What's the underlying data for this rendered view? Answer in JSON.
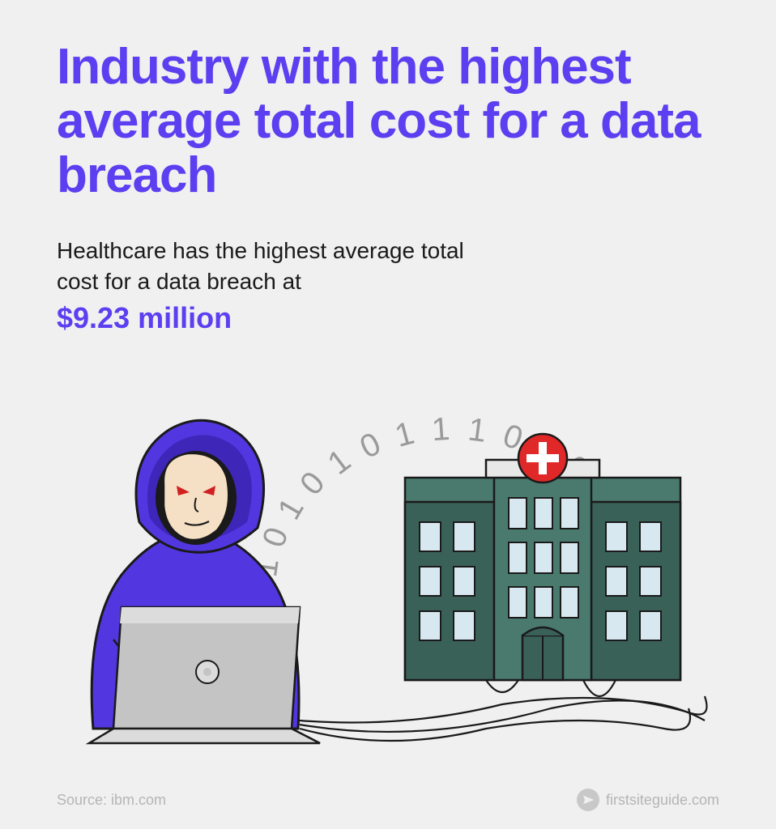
{
  "title": "Industry with the highest average total cost for a data breach",
  "subtitle": "Healthcare has the highest average total cost for a data breach at",
  "highlight_value": "$9.23 million",
  "binary_text": "010101011101001101",
  "source_label": "Source: ibm.com",
  "attribution": "firstsiteguide.com",
  "colors": {
    "title": "#5b3ff0",
    "highlight": "#5b3ff0",
    "subtitle": "#1a1a1a",
    "background": "#f0f0f0",
    "footer_text": "#b5b5b5",
    "binary": "#9a9a9a",
    "hoodie": "#5236e0",
    "hoodie_shadow": "#3d26b8",
    "skin": "#f5e0c5",
    "laptop": "#c4c4c4",
    "laptop_light": "#dcdcdc",
    "hospital_body": "#4a7a6e",
    "hospital_dark": "#3a6158",
    "hospital_window": "#d8e8f0",
    "hospital_roof": "#e8e8e8",
    "cross_bg": "#e02828",
    "cross": "#ffffff",
    "outline": "#1a1a1a",
    "eye": "#d02020"
  }
}
